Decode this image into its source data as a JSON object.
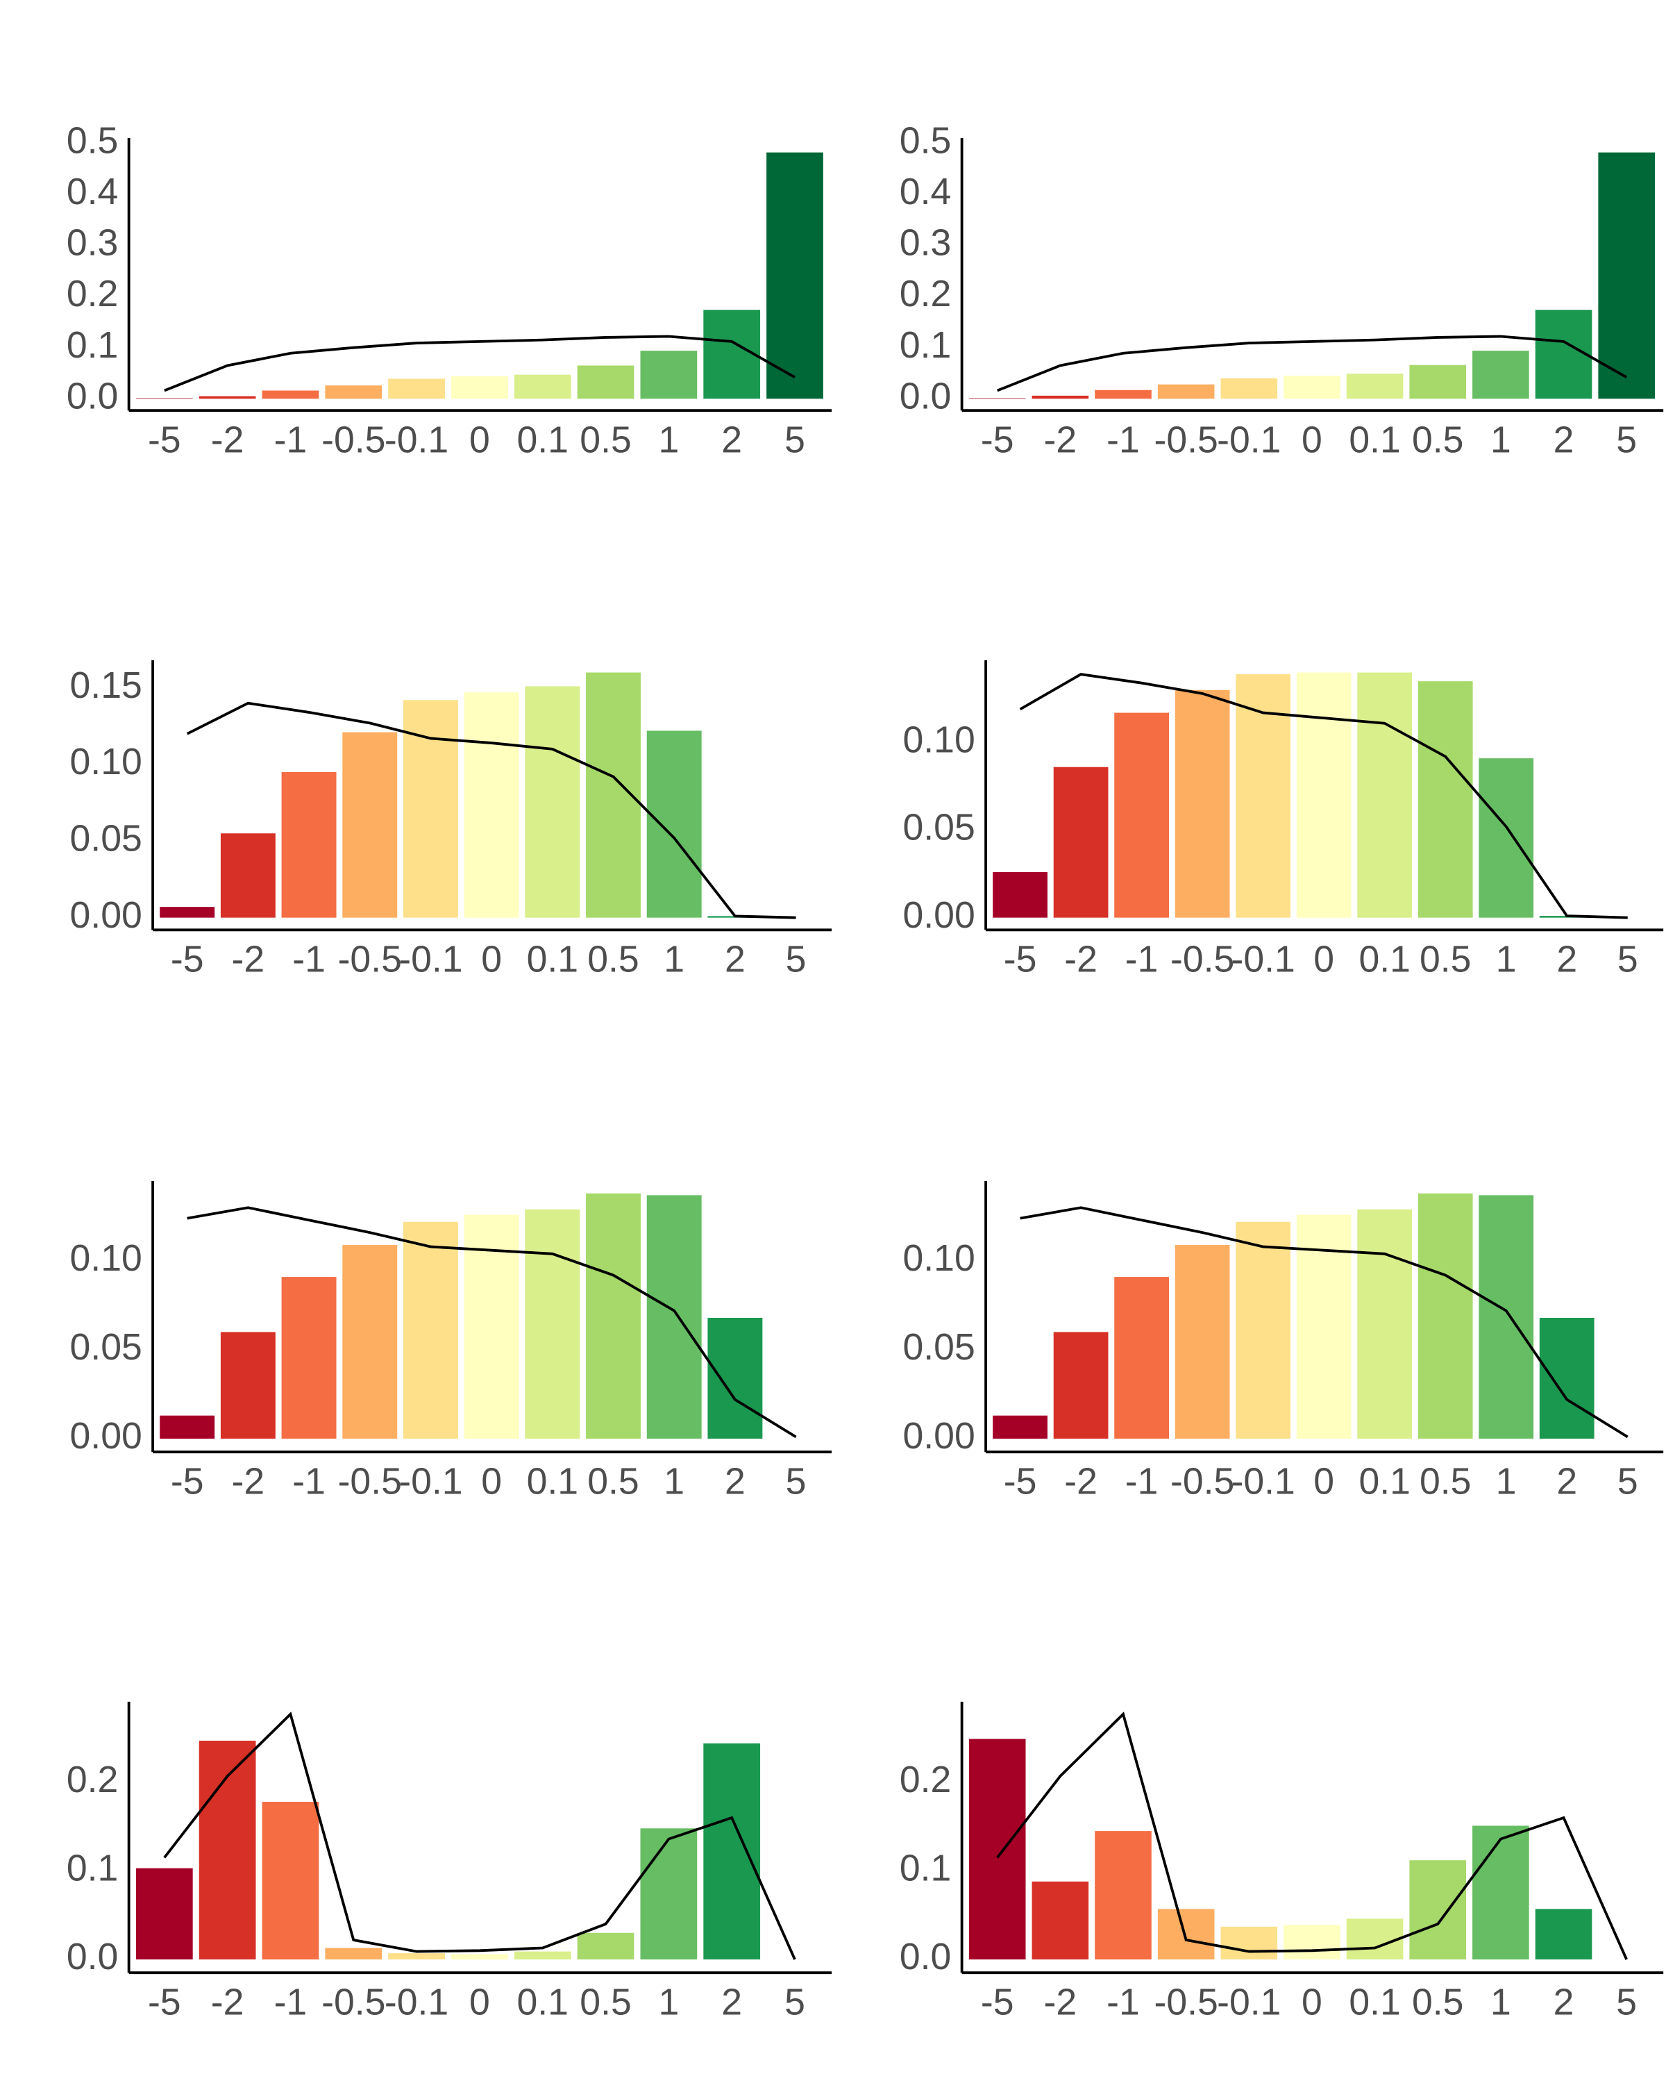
{
  "chart_data": [
    {
      "type": "bar",
      "categories": [
        "-5",
        "-2",
        "-1",
        "-0.5",
        "-0.1",
        "0",
        "0.1",
        "0.5",
        "1",
        "2",
        "5"
      ],
      "values": [
        0.001,
        0.005,
        0.016,
        0.026,
        0.039,
        0.044,
        0.047,
        0.065,
        0.094,
        0.174,
        0.482
      ],
      "colors": [
        "#a50026",
        "#d73027",
        "#f46d43",
        "#fdae61",
        "#fee08b",
        "#ffffbf",
        "#d9ef8b",
        "#a6d96a",
        "#66bd63",
        "#1a9850",
        "#006837"
      ],
      "line": {
        "color": "#000000",
        "values": [
          0.016,
          0.065,
          0.089,
          0.1,
          0.109,
          0.112,
          0.115,
          0.12,
          0.122,
          0.112,
          0.042
        ]
      },
      "ylim": [
        -0.023,
        0.51
      ],
      "yticks": [
        {
          "value": 0,
          "label": "0.0"
        },
        0.1,
        0.2,
        0.3,
        0.4,
        0.5
      ],
      "grid": false
    },
    {
      "type": "bar",
      "categories": [
        "-5",
        "-2",
        "-1",
        "-0.5",
        "-0.1",
        "0",
        "0.1",
        "0.5",
        "1",
        "2",
        "5"
      ],
      "values": [
        0.001,
        0.006,
        0.017,
        0.028,
        0.04,
        0.045,
        0.049,
        0.066,
        0.094,
        0.174,
        0.482
      ],
      "colors": [
        "#a50026",
        "#d73027",
        "#f46d43",
        "#fdae61",
        "#fee08b",
        "#ffffbf",
        "#d9ef8b",
        "#a6d96a",
        "#66bd63",
        "#1a9850",
        "#006837"
      ],
      "line": {
        "color": "#000000",
        "values": [
          0.016,
          0.065,
          0.089,
          0.1,
          0.109,
          0.112,
          0.115,
          0.12,
          0.122,
          0.112,
          0.042
        ]
      },
      "ylim": [
        -0.023,
        0.51
      ],
      "yticks": [
        {
          "value": 0,
          "label": "0.0"
        },
        0.1,
        0.2,
        0.3,
        0.4,
        0.5
      ],
      "grid": false
    },
    {
      "type": "bar",
      "categories": [
        "-5",
        "-2",
        "-1",
        "-0.5",
        "-0.1",
        "0",
        "0.1",
        "0.5",
        "1",
        "2",
        "5"
      ],
      "values": [
        0.007,
        0.055,
        0.095,
        0.121,
        0.142,
        0.147,
        0.151,
        0.16,
        0.122,
        0.001,
        0
      ],
      "colors": [
        "#a50026",
        "#d73027",
        "#f46d43",
        "#fdae61",
        "#fee08b",
        "#ffffbf",
        "#d9ef8b",
        "#a6d96a",
        "#66bd63",
        "#1a9850",
        "#006837"
      ],
      "line": {
        "color": "#000000",
        "values": [
          0.12,
          0.14,
          0.134,
          0.127,
          0.117,
          0.114,
          0.11,
          0.092,
          0.052,
          0.001,
          0
        ]
      },
      "ylim": [
        -0.008,
        0.168
      ],
      "yticks": [
        {
          "value": 0,
          "label": "0.00"
        },
        {
          "value": 0.05,
          "label": "0.05"
        },
        {
          "value": 0.1,
          "label": "0.10"
        },
        {
          "value": 0.15,
          "label": "0.15"
        }
      ],
      "grid": false
    },
    {
      "type": "bar",
      "categories": [
        "-5",
        "-2",
        "-1",
        "-0.5",
        "-0.1",
        "0",
        "0.1",
        "0.5",
        "1",
        "2",
        "5"
      ],
      "values": [
        0.026,
        0.086,
        0.117,
        0.13,
        0.139,
        0.14,
        0.14,
        0.135,
        0.091,
        0.001,
        0
      ],
      "colors": [
        "#a50026",
        "#d73027",
        "#f46d43",
        "#fdae61",
        "#fee08b",
        "#ffffbf",
        "#d9ef8b",
        "#a6d96a",
        "#66bd63",
        "#1a9850",
        "#006837"
      ],
      "line": {
        "color": "#000000",
        "values": [
          0.119,
          0.139,
          0.134,
          0.128,
          0.117,
          0.114,
          0.111,
          0.092,
          0.052,
          0.001,
          0
        ]
      },
      "ylim": [
        -0.007,
        0.147
      ],
      "yticks": [
        {
          "value": 0,
          "label": "0.00"
        },
        {
          "value": 0.05,
          "label": "0.05"
        },
        {
          "value": 0.1,
          "label": "0.10"
        }
      ],
      "grid": false
    },
    {
      "type": "bar",
      "categories": [
        "-5",
        "-2",
        "-1",
        "-0.5",
        "-0.1",
        "0",
        "0.1",
        "0.5",
        "1",
        "2",
        "5"
      ],
      "values": [
        0.013,
        0.06,
        0.091,
        0.109,
        0.122,
        0.126,
        0.129,
        0.138,
        0.137,
        0.068,
        0
      ],
      "colors": [
        "#a50026",
        "#d73027",
        "#f46d43",
        "#fdae61",
        "#fee08b",
        "#ffffbf",
        "#d9ef8b",
        "#a6d96a",
        "#66bd63",
        "#1a9850",
        "#006837"
      ],
      "line": {
        "color": "#000000",
        "values": [
          0.124,
          0.13,
          0.123,
          0.116,
          0.108,
          0.106,
          0.104,
          0.092,
          0.072,
          0.022,
          0.001
        ]
      },
      "ylim": [
        -0.0075,
        0.145
      ],
      "yticks": [
        {
          "value": 0,
          "label": "0.00"
        },
        {
          "value": 0.05,
          "label": "0.05"
        },
        {
          "value": 0.1,
          "label": "0.10"
        }
      ],
      "grid": false
    },
    {
      "type": "bar",
      "categories": [
        "-5",
        "-2",
        "-1",
        "-0.5",
        "-0.1",
        "0",
        "0.1",
        "0.5",
        "1",
        "2",
        "5"
      ],
      "values": [
        0.013,
        0.06,
        0.091,
        0.109,
        0.122,
        0.126,
        0.129,
        0.138,
        0.137,
        0.068,
        0
      ],
      "colors": [
        "#a50026",
        "#d73027",
        "#f46d43",
        "#fdae61",
        "#fee08b",
        "#ffffbf",
        "#d9ef8b",
        "#a6d96a",
        "#66bd63",
        "#1a9850",
        "#006837"
      ],
      "line": {
        "color": "#000000",
        "values": [
          0.124,
          0.13,
          0.123,
          0.116,
          0.108,
          0.106,
          0.104,
          0.092,
          0.072,
          0.022,
          0.001
        ]
      },
      "ylim": [
        -0.0075,
        0.145
      ],
      "yticks": [
        {
          "value": 0,
          "label": "0.00"
        },
        {
          "value": 0.05,
          "label": "0.05"
        },
        {
          "value": 0.1,
          "label": "0.10"
        }
      ],
      "grid": false
    },
    {
      "type": "bar",
      "categories": [
        "-5",
        "-2",
        "-1",
        "-0.5",
        "-0.1",
        "0",
        "0.1",
        "0.5",
        "1",
        "2",
        "5"
      ],
      "values": [
        0.103,
        0.247,
        0.178,
        0.013,
        0.007,
        0.006,
        0.009,
        0.03,
        0.148,
        0.244,
        0
      ],
      "colors": [
        "#a50026",
        "#d73027",
        "#f46d43",
        "#fdae61",
        "#fee08b",
        "#ffffbf",
        "#d9ef8b",
        "#a6d96a",
        "#66bd63",
        "#1a9850",
        "#006837"
      ],
      "line": {
        "color": "#000000",
        "values": [
          0.115,
          0.207,
          0.277,
          0.022,
          0.009,
          0.01,
          0.013,
          0.04,
          0.136,
          0.16,
          0
        ]
      },
      "ylim": [
        -0.015,
        0.291
      ],
      "yticks": [
        {
          "value": 0,
          "label": "0.0"
        },
        0.1,
        0.2
      ],
      "grid": false
    },
    {
      "type": "bar",
      "categories": [
        "-5",
        "-2",
        "-1",
        "-0.5",
        "-0.1",
        "0",
        "0.1",
        "0.5",
        "1",
        "2",
        "5"
      ],
      "values": [
        0.249,
        0.088,
        0.145,
        0.057,
        0.037,
        0.039,
        0.046,
        0.112,
        0.151,
        0.057,
        0
      ],
      "colors": [
        "#a50026",
        "#d73027",
        "#f46d43",
        "#fdae61",
        "#fee08b",
        "#ffffbf",
        "#d9ef8b",
        "#a6d96a",
        "#66bd63",
        "#1a9850",
        "#006837"
      ],
      "line": {
        "color": "#000000",
        "values": [
          0.115,
          0.207,
          0.277,
          0.022,
          0.009,
          0.01,
          0.013,
          0.04,
          0.136,
          0.16,
          0
        ]
      },
      "ylim": [
        -0.015,
        0.291
      ],
      "yticks": [
        {
          "value": 0,
          "label": "0.0"
        },
        0.1,
        0.2
      ],
      "grid": false
    }
  ]
}
